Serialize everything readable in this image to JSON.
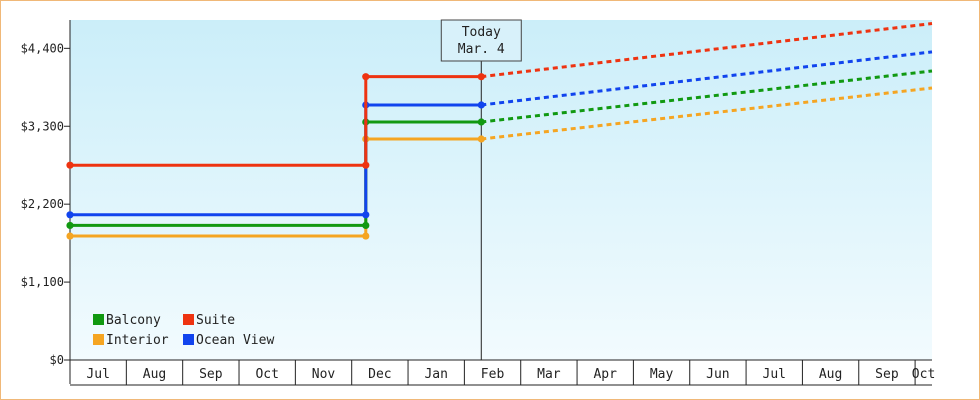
{
  "chart_data": {
    "type": "line",
    "title": "",
    "xlabel": "",
    "ylabel": "",
    "ylim": [
      0,
      4800
    ],
    "yticks": [
      {
        "value": 0,
        "label": "$0"
      },
      {
        "value": 1100,
        "label": "$1,100"
      },
      {
        "value": 2200,
        "label": "$2,200"
      },
      {
        "value": 3300,
        "label": "$3,300"
      },
      {
        "value": 4400,
        "label": "$4,400"
      }
    ],
    "x_axis": {
      "min": 0,
      "max": 15.3,
      "unit_note": "months from Jul 1",
      "month_labels": [
        "Jul",
        "Aug",
        "Sep",
        "Oct",
        "Nov",
        "Dec",
        "Jan",
        "Feb",
        "Mar",
        "Apr",
        "May",
        "Jun",
        "Jul",
        "Aug",
        "Sep",
        "Oct"
      ]
    },
    "marker": {
      "x": 7.3,
      "line1": "Today",
      "line2": "Mar. 4"
    },
    "legend": {
      "placement": "bottom-left",
      "columns": 2
    },
    "grid": false,
    "background": {
      "top": "#cbeef9",
      "bottom": "#f2fbfe"
    },
    "series": [
      {
        "name": "Suite",
        "color": "#ee3311",
        "historical": [
          [
            0,
            2750
          ],
          [
            5.25,
            2750
          ],
          [
            5.25,
            4000
          ],
          [
            7.3,
            4000
          ]
        ],
        "projected": [
          [
            7.3,
            4000
          ],
          [
            15.3,
            4750
          ]
        ]
      },
      {
        "name": "Ocean View",
        "color": "#1144ee",
        "historical": [
          [
            0,
            2050
          ],
          [
            5.25,
            2050
          ],
          [
            5.25,
            3600
          ],
          [
            7.3,
            3600
          ]
        ],
        "projected": [
          [
            7.3,
            3600
          ],
          [
            15.3,
            4350
          ]
        ]
      },
      {
        "name": "Balcony",
        "color": "#119911",
        "historical": [
          [
            0,
            1900
          ],
          [
            5.25,
            1900
          ],
          [
            5.25,
            3360
          ],
          [
            7.3,
            3360
          ]
        ],
        "projected": [
          [
            7.3,
            3360
          ],
          [
            15.3,
            4080
          ]
        ]
      },
      {
        "name": "Interior",
        "color": "#f5a522",
        "historical": [
          [
            0,
            1750
          ],
          [
            5.25,
            1750
          ],
          [
            5.25,
            3120
          ],
          [
            7.3,
            3120
          ]
        ],
        "projected": [
          [
            7.3,
            3120
          ],
          [
            15.3,
            3840
          ]
        ]
      }
    ]
  }
}
